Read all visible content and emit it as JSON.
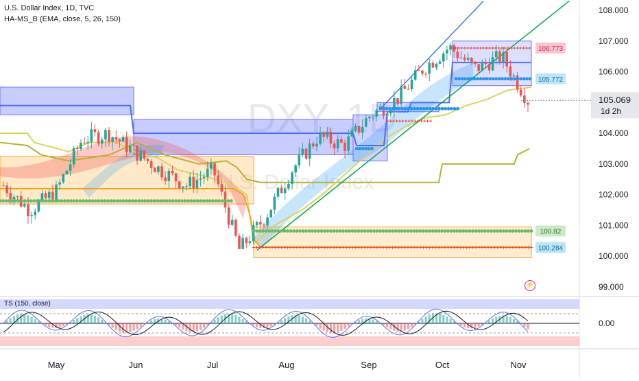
{
  "header": {
    "title": "U.S. Dollar Index, 1D, TVC",
    "indicator": "HA-MS_B (EMA, close, 5, 26, 150)",
    "oscillator": "TS (150, close)"
  },
  "watermark": {
    "symbol": "DXY, 1D",
    "name": "U.S. Dollar Index"
  },
  "price_axis": {
    "ticks": [
      "108.000",
      "107.000",
      "106.000",
      "104.000",
      "103.000",
      "102.000",
      "101.000",
      "100.000",
      "99.000"
    ],
    "current_price": "105.069",
    "countdown": "1d 2h",
    "levels": [
      {
        "label": "106.773",
        "value": 106.773,
        "color": "#f8c8d0",
        "text_color": "#e91e63"
      },
      {
        "label": "105.772",
        "value": 105.772,
        "color": "#bfe4f5",
        "text_color": "#0b6fa4"
      },
      {
        "label": "100.82",
        "value": 100.82,
        "color": "#cfe9c7",
        "text_color": "#2e7d32"
      },
      {
        "label": "100.284",
        "value": 100.284,
        "color": "#bfe4f5",
        "text_color": "#0b6fa4"
      }
    ]
  },
  "oscillator_axis": {
    "zero_label": "0.00"
  },
  "time_axis": {
    "labels": [
      "May",
      "Jun",
      "Jul",
      "Aug",
      "Sep",
      "Oct",
      "Nov"
    ]
  },
  "colors": {
    "up": "#26a69a",
    "down": "#ef5350",
    "fast_ema": "#2962ff",
    "trendline": "#00a651",
    "channel": "#4f6bff",
    "support": "#ff9800",
    "mid_line": "#c5c85a",
    "green_dots": "#66bb6a",
    "blue_dots": "#2196f3",
    "red_cross": "#f44336"
  },
  "chart_data": {
    "type": "candlestick",
    "x_range": [
      "Apr",
      "Nov"
    ],
    "ylim": [
      99.0,
      108.0
    ],
    "close_path": [
      [
        "Apr",
        102.3
      ],
      [
        "early-May",
        101.5
      ],
      [
        "mid-May",
        102.1
      ],
      [
        "late-May",
        103.8
      ],
      [
        "Jun",
        104.0
      ],
      [
        "mid-Jun",
        103.4
      ],
      [
        "late-Jun",
        102.8
      ],
      [
        "Jul",
        102.3
      ],
      [
        "early-Jul",
        102.8
      ],
      [
        "mid-Jul",
        100.2
      ],
      [
        "late-Jul",
        101.3
      ],
      [
        "Aug",
        102.8
      ],
      [
        "mid-Aug",
        103.9
      ],
      [
        "late-Aug",
        103.6
      ],
      [
        "Sep",
        104.6
      ],
      [
        "mid-Sep",
        105.1
      ],
      [
        "late-Sep",
        106.1
      ],
      [
        "Oct",
        106.8
      ],
      [
        "mid-Oct",
        106.1
      ],
      [
        "late-Oct",
        106.5
      ],
      [
        "Nov",
        105.069
      ]
    ]
  }
}
